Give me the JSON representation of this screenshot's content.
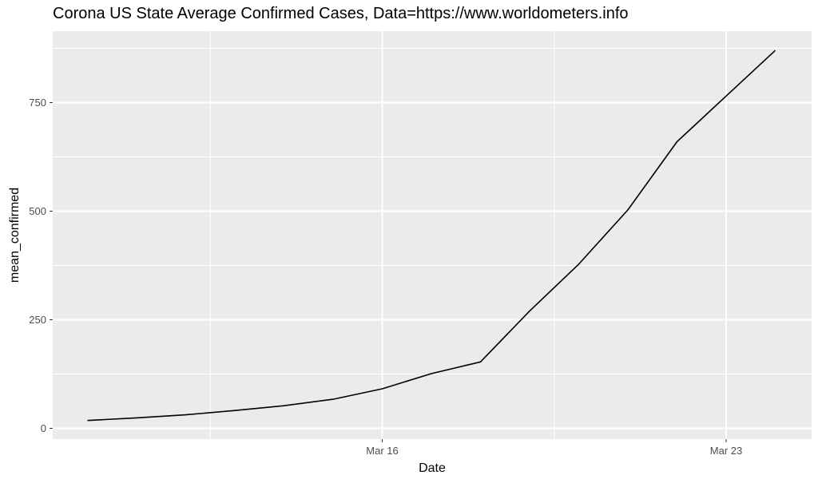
{
  "chart_data": {
    "type": "line",
    "title": "Corona US State Average Confirmed Cases, Data=https://www.worldometers.info",
    "xlabel": "Date",
    "ylabel": "mean_confirmed",
    "x_ticks": [
      "Mar 16",
      "Mar 23"
    ],
    "y_ticks": [
      0,
      250,
      500,
      750
    ],
    "xlim": [
      "2020-03-10",
      "2020-03-24"
    ],
    "ylim": [
      0,
      880
    ],
    "grid": true,
    "background_color": "#ebebeb",
    "grid_color": "#ffffff",
    "line_color": "#000000",
    "series": [
      {
        "x": [
          "2020-03-10",
          "2020-03-11",
          "2020-03-12",
          "2020-03-13",
          "2020-03-14",
          "2020-03-15",
          "2020-03-16",
          "2020-03-17",
          "2020-03-18",
          "2020-03-19",
          "2020-03-20",
          "2020-03-21",
          "2020-03-22",
          "2020-03-23",
          "2020-03-24"
        ],
        "values": [
          18,
          24,
          31,
          41,
          52,
          67,
          91,
          126,
          153,
          270,
          378,
          503,
          660,
          765,
          870
        ]
      }
    ]
  }
}
